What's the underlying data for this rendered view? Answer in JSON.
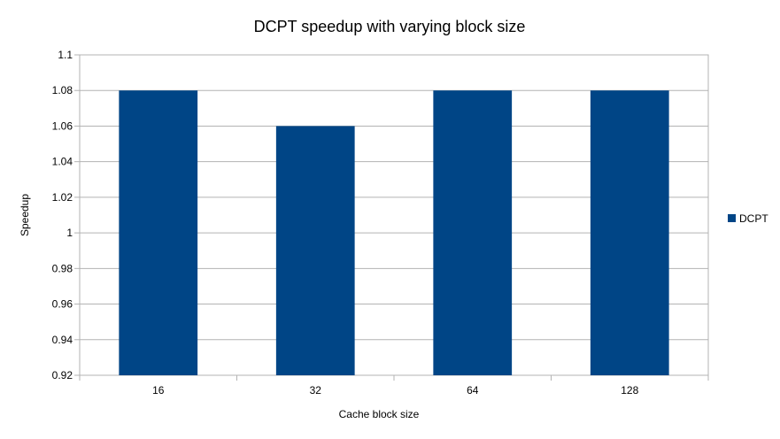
{
  "chart_data": {
    "type": "bar",
    "title": "DCPT speedup with varying block size",
    "xlabel": "Cache block size",
    "ylabel": "Speedup",
    "categories": [
      "16",
      "32",
      "64",
      "128"
    ],
    "series": [
      {
        "name": "DCPT",
        "values": [
          1.08,
          1.06,
          1.08,
          1.08
        ],
        "color": "#004586"
      }
    ],
    "ylim": [
      0.92,
      1.1
    ],
    "yticks": [
      "0.92",
      "0.94",
      "0.96",
      "0.98",
      "1",
      "1.02",
      "1.04",
      "1.06",
      "1.08",
      "1.1"
    ],
    "grid": true,
    "legend_position": "right"
  }
}
